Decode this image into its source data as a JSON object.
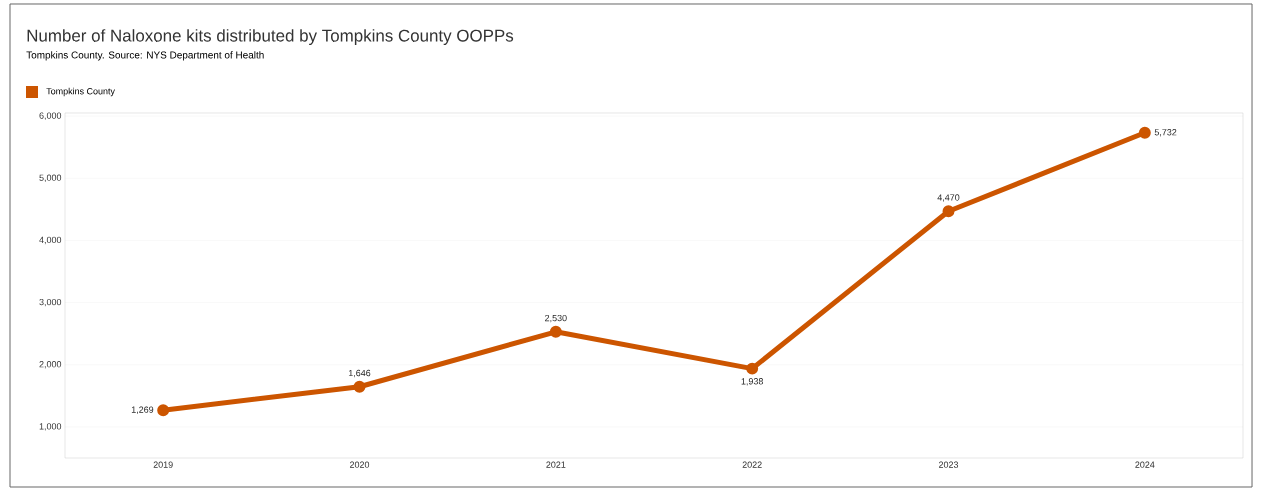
{
  "chart_data": {
    "type": "line",
    "title": "Number of Naloxone kits distributed by Tompkins County OOPPs",
    "subtitle": "Tompkins County. Source: NYS Department of Health",
    "categories": [
      "2019",
      "2020",
      "2021",
      "2022",
      "2023",
      "2024"
    ],
    "series": [
      {
        "name": "Tompkins County",
        "color": "#cc5500",
        "values": [
          1269,
          1646,
          2530,
          1938,
          4470,
          5732
        ],
        "value_labels": [
          "1,269",
          "1,646",
          "2,530",
          "1,938",
          "4,470",
          "5,732"
        ]
      }
    ],
    "ylim": [
      500,
      6050
    ],
    "yticks": [
      {
        "value": 1000,
        "label": "1,000"
      },
      {
        "value": 2000,
        "label": "2,000"
      },
      {
        "value": 3000,
        "label": "3,000"
      },
      {
        "value": 4000,
        "label": "4,000"
      },
      {
        "value": 5000,
        "label": "5,000"
      },
      {
        "value": 6000,
        "label": "6,000"
      }
    ],
    "grid": "y",
    "legend": "top left",
    "marker": "circle",
    "line_style": "solid"
  }
}
